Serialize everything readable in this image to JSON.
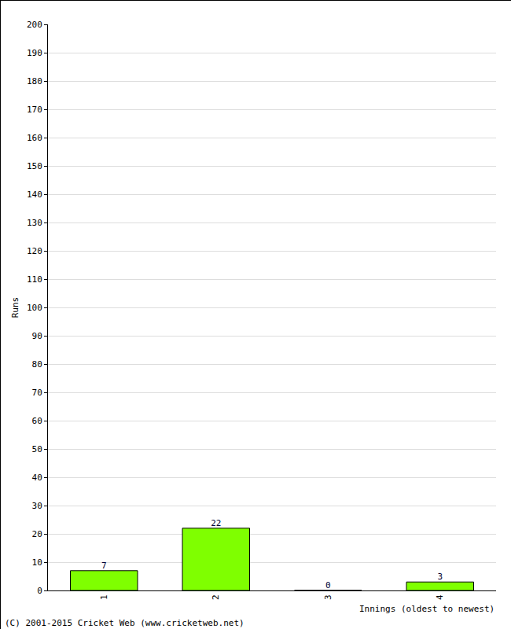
{
  "chart_data": {
    "type": "bar",
    "x_label": "Innings (oldest to newest)",
    "y_label": "Runs",
    "categories": [
      "1",
      "2",
      "3",
      "4"
    ],
    "values": [
      7,
      22,
      0,
      3
    ],
    "color": "#7fff00",
    "ylim": [
      0,
      200
    ],
    "yticks": [
      0,
      10,
      20,
      30,
      40,
      50,
      60,
      70,
      80,
      90,
      100,
      110,
      120,
      130,
      140,
      150,
      160,
      170,
      180,
      190,
      200
    ],
    "grid": true,
    "data_labels": true,
    "annotations": [
      "(C) 2001-2015 Cricket Web (www.cricketweb.net)"
    ]
  }
}
